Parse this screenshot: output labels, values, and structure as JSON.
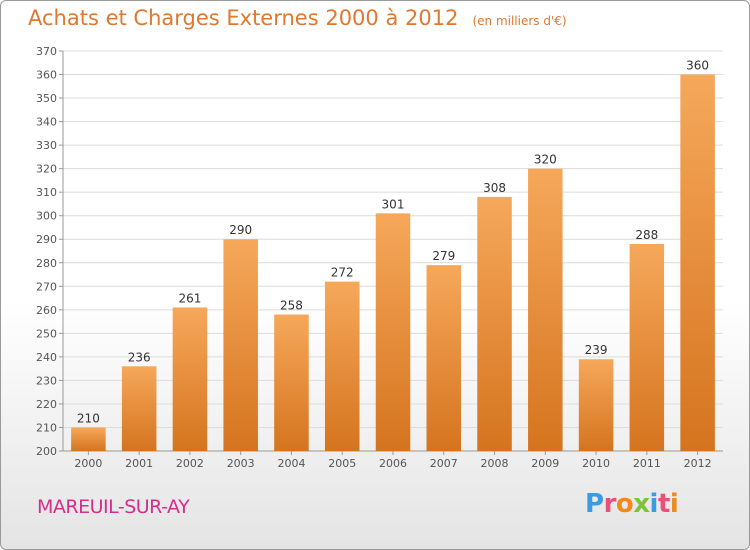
{
  "header": {
    "title": "Achats et Charges Externes 2000 à 2012",
    "subtitle": "(en milliers d'€)"
  },
  "footer": {
    "place": "MAREUIL-SUR-AY",
    "logo_text": "Proxiti"
  },
  "colors": {
    "title": "#e0782f",
    "place": "#d62e8a",
    "bar_light": "#f6a85a",
    "bar_dark": "#d5741f",
    "logo_letters": [
      "#3b9be0",
      "#e8507a",
      "#f08a1c",
      "#7cc23a",
      "#3b9be0",
      "#e8507a",
      "#f08a1c"
    ]
  },
  "chart_data": {
    "type": "bar",
    "title": "Achats et Charges Externes 2000 à 2012",
    "subtitle": "(en milliers d'€)",
    "categories": [
      "2000",
      "2001",
      "2002",
      "2003",
      "2004",
      "2005",
      "2006",
      "2007",
      "2008",
      "2009",
      "2010",
      "2011",
      "2012"
    ],
    "values": [
      210,
      236,
      261,
      290,
      258,
      272,
      301,
      279,
      308,
      320,
      239,
      288,
      360
    ],
    "xlabel": "",
    "ylabel": "",
    "ylim": [
      200,
      370
    ],
    "yticks": [
      200,
      210,
      220,
      230,
      240,
      250,
      260,
      270,
      280,
      290,
      300,
      310,
      320,
      330,
      340,
      350,
      360,
      370
    ],
    "grid": true,
    "data_labels": true
  }
}
